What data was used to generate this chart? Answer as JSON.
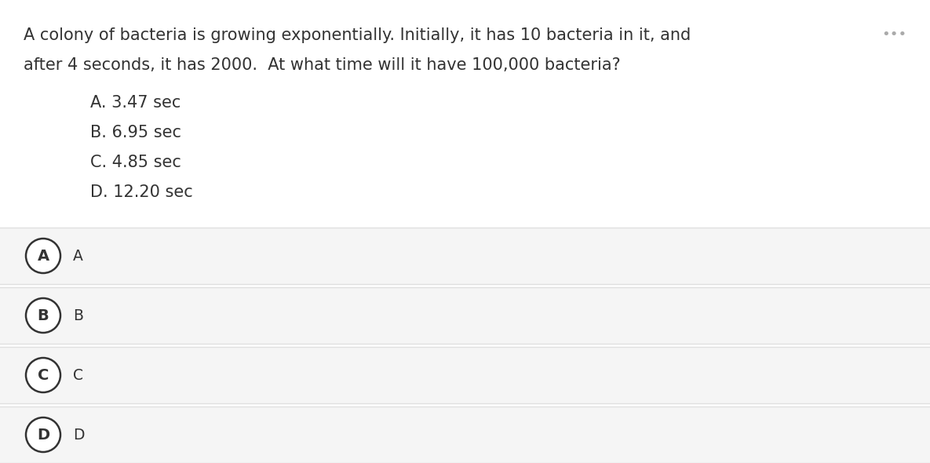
{
  "question_line1": "A colony of bacteria is growing exponentially. Initially, it has 10 bacteria in it, and",
  "question_line2": "after 4 seconds, it has 2000.  At what time will it have 100,000 bacteria?",
  "ellipsis": "•••",
  "options": [
    "A. 3.47 sec",
    "B. 6.95 sec",
    "C. 4.85 sec",
    "D. 12.20 sec"
  ],
  "answer_labels": [
    "A",
    "B",
    "C",
    "D"
  ],
  "answer_texts": [
    "A",
    "B",
    "C",
    "D"
  ],
  "bg_color": "#ffffff",
  "answer_row_color": "#f5f5f5",
  "answer_row_separator_color": "#e0e0e0",
  "circle_edge_color": "#333333",
  "circle_face_color": "#ffffff",
  "text_color": "#333333",
  "question_fontsize": 15.0,
  "option_fontsize": 15.0,
  "answer_label_fontsize": 14.0,
  "answer_text_fontsize": 13.5,
  "ellipsis_fontsize": 13.0
}
